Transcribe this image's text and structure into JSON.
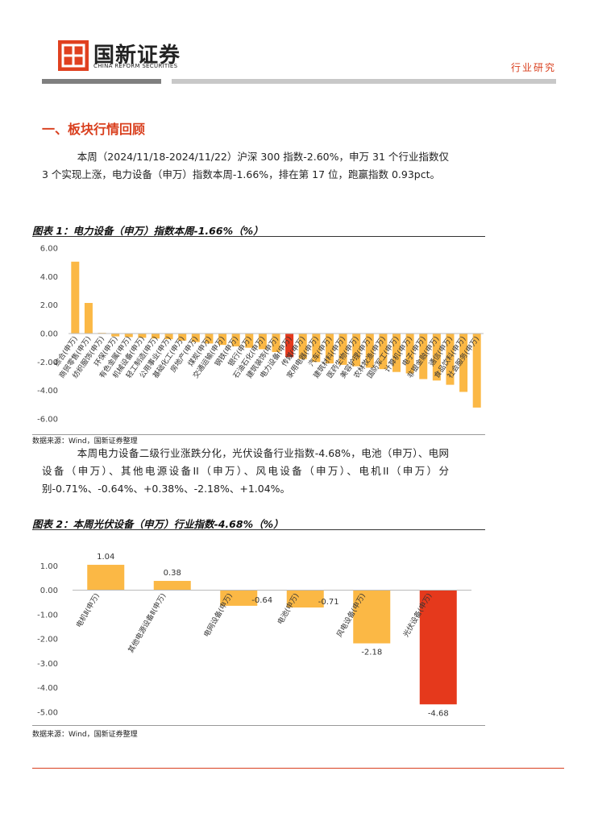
{
  "header": {
    "brand": "国新证券",
    "brand_en": "CHINA REFORM SECURITIES",
    "section": "行业研究"
  },
  "heading": "一、板块行情回顾",
  "paragraphs": [
    "本周（2024/11/18-2024/11/22）沪深 300 指数-2.60%，申万 31 个行业指数仅 3 个实现上涨，电力设备（申万）指数本周-1.66%，排在第 17 位，跑赢指数 0.93pct。",
    "本周电力设备二级行业涨跌分化，光伏设备行业指数-4.68%，电池（申万）、电网设备（申万）、其他电源设备II（申万）、风电设备（申万）、电机II（申万）分别-0.71%、-0.64%、+0.38%、-2.18%、+1.04%。"
  ],
  "chart_data": [
    {
      "type": "bar",
      "title": "图表 1：电力设备（申万）指数本周-1.66%（%）",
      "source": "数据来源：Wind，国新证券整理",
      "categories": [
        "综合(申万)",
        "商贸零售(申万)",
        "纺织服饰(申万)",
        "环保(申万)",
        "有色金属(申万)",
        "机械设备(申万)",
        "轻工制造(申万)",
        "公用事业(申万)",
        "基础化工(申万)",
        "房地产(申万)",
        "煤炭(申万)",
        "交通运输(申万)",
        "钢铁(申万)",
        "银行(申万)",
        "石油石化(申万)",
        "建筑装饰(申万)",
        "电力设备(申万)",
        "传媒(申万)",
        "家用电器(申万)",
        "汽车(申万)",
        "建筑材料(申万)",
        "医药生物(申万)",
        "美容护理(申万)",
        "农林牧渔(申万)",
        "国防军工(申万)",
        "计算机(申万)",
        "电子(申万)",
        "非银金融(申万)",
        "通信(申万)",
        "食品饮料(申万)",
        "社会服务(申万)"
      ],
      "values": [
        5.05,
        2.15,
        0.05,
        -0.2,
        -0.25,
        -0.3,
        -0.35,
        -0.4,
        -0.5,
        -0.6,
        -0.7,
        -0.8,
        -0.9,
        -1.0,
        -1.1,
        -1.3,
        -1.66,
        -1.8,
        -2.0,
        -2.1,
        -2.2,
        -2.3,
        -2.4,
        -2.5,
        -2.7,
        -2.8,
        -3.2,
        -3.3,
        -3.6,
        -4.1,
        -5.2
      ],
      "colors": [
        "#fbb845",
        "#fbb845",
        "#fbb845",
        "#fbb845",
        "#fbb845",
        "#fbb845",
        "#fbb845",
        "#fbb845",
        "#fbb845",
        "#fbb845",
        "#fbb845",
        "#fbb845",
        "#fbb845",
        "#fbb845",
        "#fbb845",
        "#fbb845",
        "#e5391c",
        "#fbb845",
        "#fbb845",
        "#fbb845",
        "#fbb845",
        "#fbb845",
        "#fbb845",
        "#fbb845",
        "#fbb845",
        "#fbb845",
        "#fbb845",
        "#fbb845",
        "#fbb845",
        "#fbb845",
        "#fbb845"
      ],
      "ylim": [
        -6,
        6
      ],
      "yticks": [
        {
          "value": 6,
          "label": "6.00"
        },
        {
          "value": 4,
          "label": "4.00"
        },
        {
          "value": 2,
          "label": "2.00"
        },
        {
          "value": 0,
          "label": "0.00"
        },
        {
          "value": -2,
          "label": "-2.00"
        },
        {
          "value": -4,
          "label": "-4.00"
        },
        {
          "value": -6,
          "label": "-6.00"
        }
      ]
    },
    {
      "type": "bar",
      "title": "图表 2：本周光伏设备（申万）行业指数-4.68%（%）",
      "source": "数据来源：Wind，国新证券整理",
      "categories": [
        "电机Ⅱ(申万)",
        "其他电源设备Ⅱ(申万)",
        "电网设备(申万)",
        "电池(申万)",
        "风电设备(申万)",
        "光伏设备(申万)"
      ],
      "values": [
        1.04,
        0.38,
        -0.64,
        -0.71,
        -2.18,
        -4.68
      ],
      "colors": [
        "#fbb845",
        "#fbb845",
        "#fbb845",
        "#fbb845",
        "#fbb845",
        "#e5391c"
      ],
      "ylim": [
        -5.2,
        1.9
      ],
      "yticks": [
        {
          "value": 1,
          "label": "1.00"
        },
        {
          "value": 0,
          "label": "0.00"
        },
        {
          "value": -1,
          "label": "-1.00"
        },
        {
          "value": -2,
          "label": "-2.00"
        },
        {
          "value": -3,
          "label": "-3.00"
        },
        {
          "value": -4,
          "label": "-4.00"
        },
        {
          "value": -5,
          "label": "-5.00"
        }
      ]
    }
  ]
}
